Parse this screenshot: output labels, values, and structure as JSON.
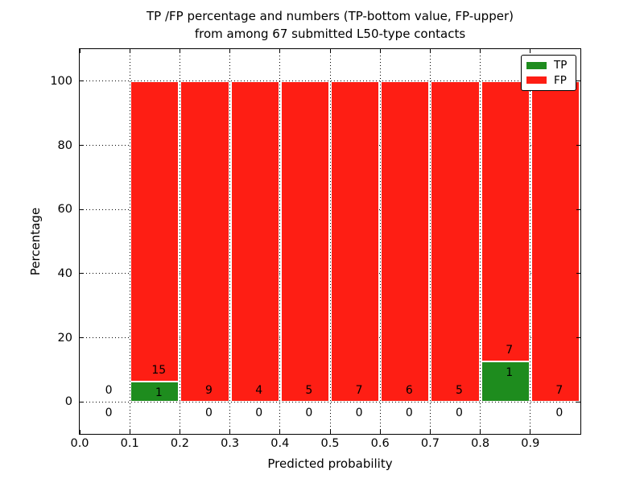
{
  "title": {
    "line1": "TP /FP percentage and numbers (TP-bottom value, FP-upper)",
    "line2": "from among 67 submitted L50-type contacts"
  },
  "axes": {
    "xlabel": "Predicted probability",
    "ylabel": "Percentage",
    "x_ticks": [
      "0.0",
      "0.1",
      "0.2",
      "0.3",
      "0.4",
      "0.5",
      "0.6",
      "0.7",
      "0.8",
      "0.9"
    ],
    "y_ticks": [
      "0",
      "20",
      "40",
      "60",
      "80",
      "100"
    ],
    "xlim": [
      0.0,
      1.0
    ],
    "ylim": [
      -10,
      110
    ],
    "grid": "dotted"
  },
  "legend": {
    "position": "upper-right",
    "items": [
      {
        "label": "TP",
        "color": "#1e8c1e"
      },
      {
        "label": "FP",
        "color": "#fe1e14"
      }
    ]
  },
  "colors": {
    "tp": "#1e8c1e",
    "fp": "#fe1e14",
    "background": "#ffffff",
    "text": "#000000",
    "grid": "#000000"
  },
  "chart_data": {
    "type": "bar",
    "stacked": true,
    "title": "TP /FP percentage and numbers (TP-bottom value, FP-upper) from among 67 submitted L50-type contacts",
    "xlabel": "Predicted probability",
    "ylabel": "Percentage",
    "total_contacts": 67,
    "bin_width": 0.1,
    "note_in_title": "TP-bottom value, FP-upper",
    "bins": [
      {
        "range": [
          0.0,
          0.1
        ],
        "tp": 0,
        "fp": 0
      },
      {
        "range": [
          0.1,
          0.2
        ],
        "tp": 1,
        "fp": 15
      },
      {
        "range": [
          0.2,
          0.3
        ],
        "tp": 0,
        "fp": 9
      },
      {
        "range": [
          0.3,
          0.4
        ],
        "tp": 0,
        "fp": 4
      },
      {
        "range": [
          0.4,
          0.5
        ],
        "tp": 0,
        "fp": 5
      },
      {
        "range": [
          0.5,
          0.6
        ],
        "tp": 0,
        "fp": 7
      },
      {
        "range": [
          0.6,
          0.7
        ],
        "tp": 0,
        "fp": 6
      },
      {
        "range": [
          0.7,
          0.8
        ],
        "tp": 0,
        "fp": 5
      },
      {
        "range": [
          0.8,
          0.9
        ],
        "tp": 1,
        "fp": 7
      },
      {
        "range": [
          0.9,
          1.0
        ],
        "tp": 0,
        "fp": 7
      }
    ],
    "series": [
      {
        "name": "TP",
        "values": [
          0,
          1,
          0,
          0,
          0,
          0,
          0,
          0,
          1,
          0
        ]
      },
      {
        "name": "FP",
        "values": [
          0,
          15,
          9,
          4,
          5,
          7,
          6,
          5,
          7,
          7
        ]
      }
    ]
  }
}
